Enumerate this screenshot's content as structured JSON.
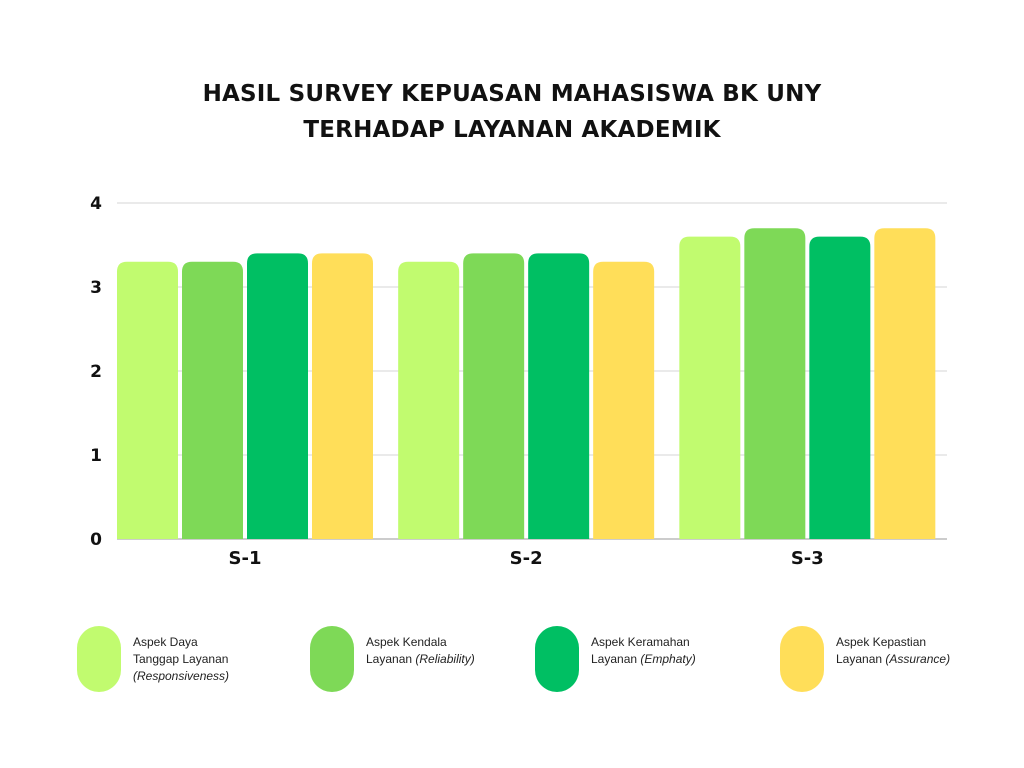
{
  "chart_data": {
    "type": "bar",
    "title": [
      "HASIL SURVEY KEPUASAN MAHASISWA BK UNY",
      "TERHADAP LAYANAN AKADEMIK"
    ],
    "categories": [
      "S-1",
      "S-2",
      "S-3"
    ],
    "ylim": [
      0,
      4
    ],
    "yticks": [
      "0",
      "1",
      "2",
      "3",
      "4"
    ],
    "grid": true,
    "legend_position": "bottom",
    "series": [
      {
        "name": "Aspek Daya Tanggap Layanan (Responsiveness)",
        "color": "#c1fb6f",
        "values": [
          3.3,
          3.3,
          3.6
        ]
      },
      {
        "name": "Aspek Kendala Layanan (Reliability)",
        "color": "#7ed957",
        "values": [
          3.3,
          3.4,
          3.7
        ]
      },
      {
        "name": "Aspek Keramahan Layanan (Emphaty)",
        "color": "#00bf63",
        "values": [
          3.4,
          3.4,
          3.6
        ]
      },
      {
        "name": "Aspek Kepastian Layanan (Assurance)",
        "color": "#ffde59",
        "values": [
          3.4,
          3.3,
          3.7
        ]
      }
    ]
  },
  "legend": [
    {
      "lines": [
        "Aspek Daya",
        "Tanggap Layanan"
      ],
      "italic_line": "(Responsiveness)",
      "inline_italic": ""
    },
    {
      "lines": [
        "Aspek Kendala"
      ],
      "prefix": "Layanan ",
      "inline_italic": "(Reliability)"
    },
    {
      "lines": [
        "Aspek Keramahan"
      ],
      "prefix": "Layanan ",
      "inline_italic": "(Emphaty)"
    },
    {
      "lines": [
        "Aspek Kepastian"
      ],
      "prefix": "Layanan ",
      "inline_italic": "(Assurance)"
    }
  ]
}
